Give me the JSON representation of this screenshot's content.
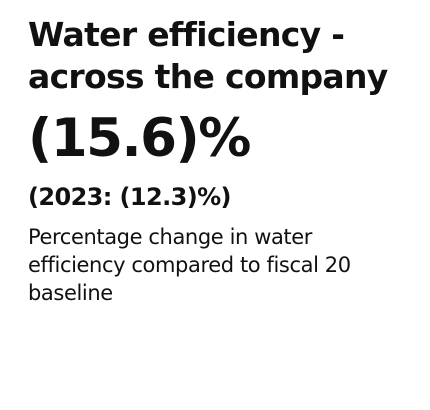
{
  "kpi": {
    "title_lines": [
      "Water efficiency -",
      "across the company"
    ],
    "value": "(15.6)%",
    "prior_year": "(2023: (12.3)%)",
    "description_lines": [
      "Percentage change in water",
      "efficiency compared to fiscal 20",
      "baseline"
    ]
  }
}
